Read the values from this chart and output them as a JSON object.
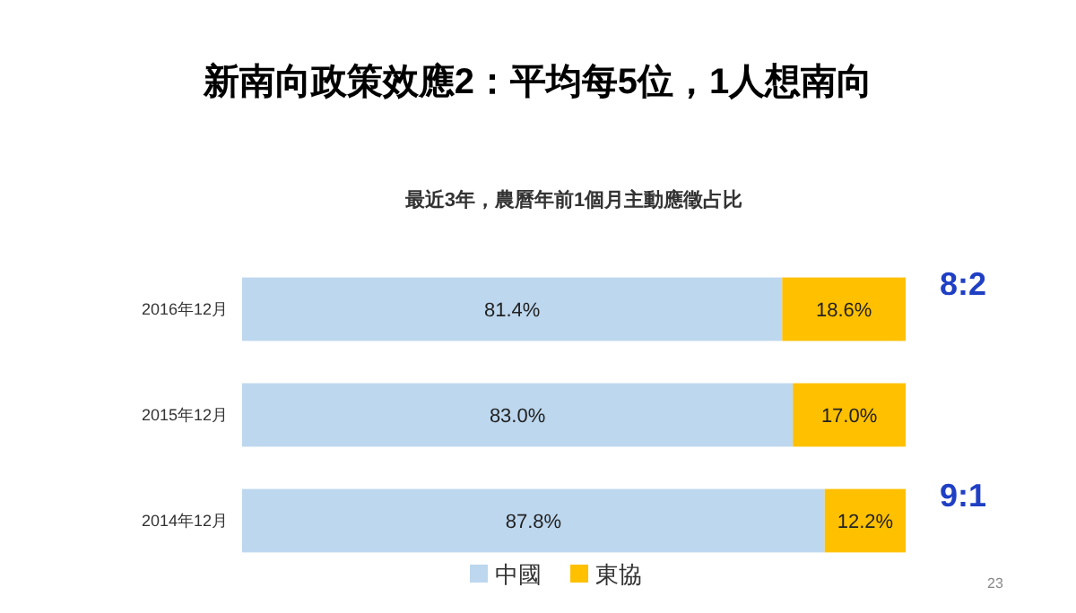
{
  "chart_data": {
    "type": "bar",
    "orientation": "horizontal",
    "stacked": true,
    "legend": "bottom",
    "title": "新南向政策效應2：平均每5位，1人想南向",
    "subtitle": "最近3年，農曆年前1個月主動應徵占比",
    "categories": [
      "2016年12月",
      "2015年12月",
      "2014年12月"
    ],
    "series": [
      {
        "name": "中國",
        "color": "#bdd7ee",
        "values": [
          81.4,
          83.0,
          87.8
        ],
        "value_labels": [
          "81.4%",
          "83.0%",
          "87.8%"
        ]
      },
      {
        "name": "東協",
        "color": "#ffc000",
        "values": [
          18.6,
          17.0,
          12.2
        ],
        "value_labels": [
          "18.6%",
          "17.0%",
          "12.2%"
        ]
      }
    ],
    "annotations": [
      "8:2",
      "9:1",
      "23"
    ]
  }
}
